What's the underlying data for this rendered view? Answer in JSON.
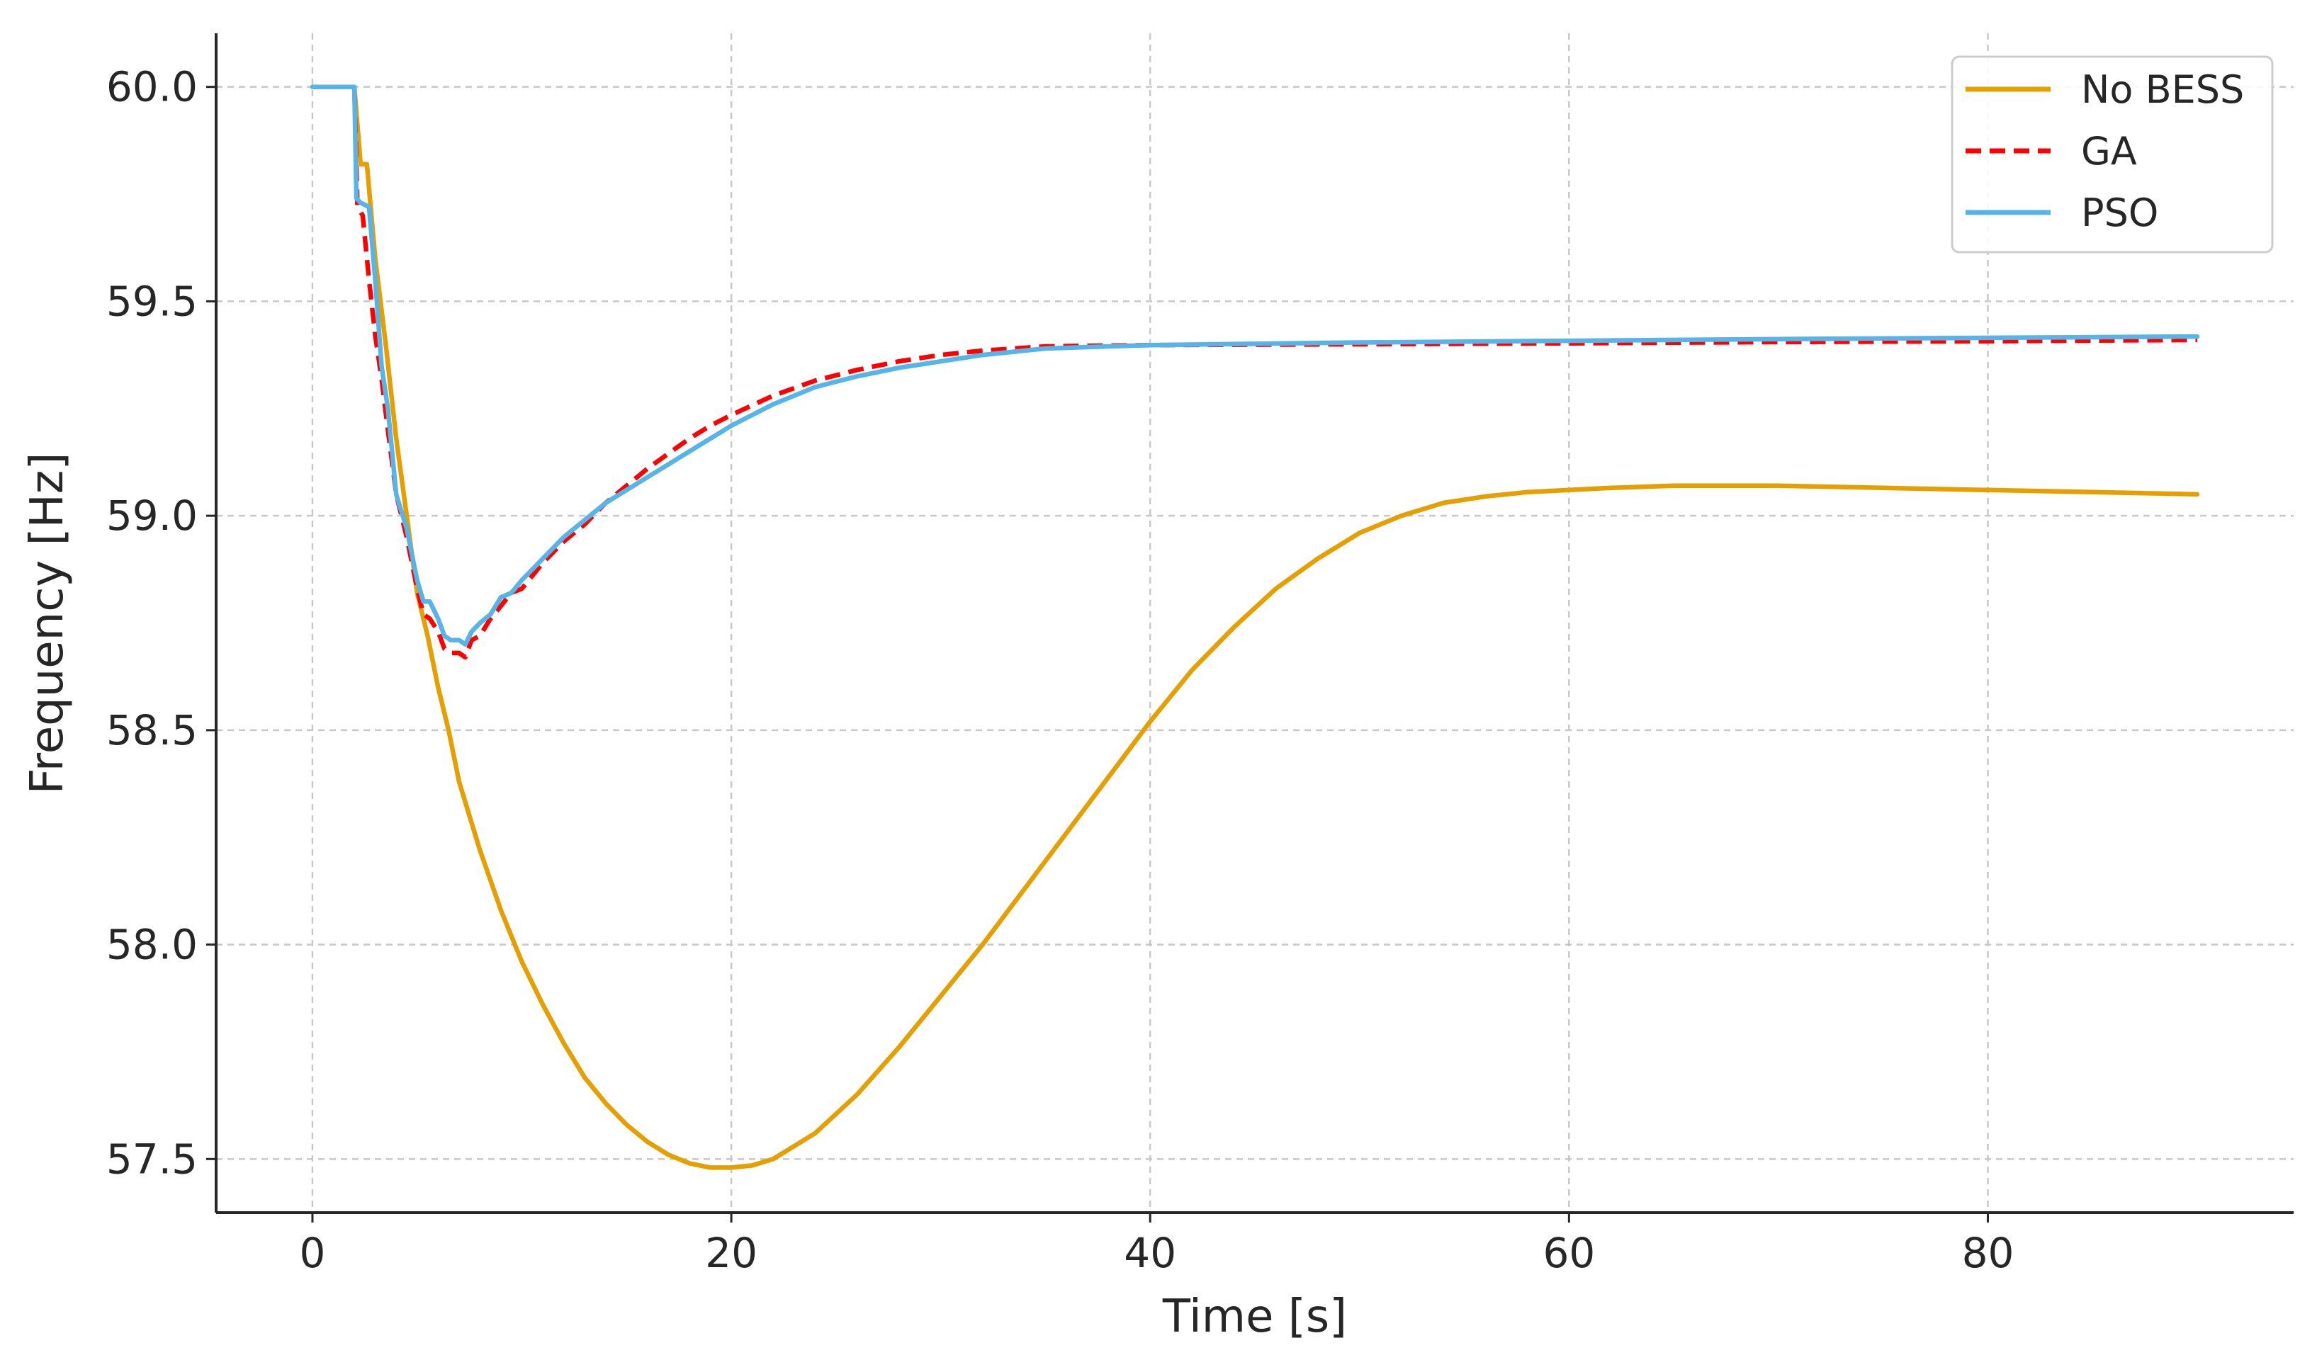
{
  "chart_data": {
    "type": "line",
    "xlabel": "Time [s]",
    "ylabel": "Frequency [Hz]",
    "xlim": [
      -4.6,
      94.6
    ],
    "ylim": [
      57.375,
      60.125
    ],
    "xticks": [
      0,
      20,
      40,
      60,
      80
    ],
    "xtick_labels": [
      "0",
      "20",
      "40",
      "60",
      "80"
    ],
    "yticks": [
      57.5,
      58.0,
      58.5,
      59.0,
      59.5,
      60.0
    ],
    "ytick_labels": [
      "57.5",
      "58.0",
      "58.5",
      "59.0",
      "59.5",
      "60.0"
    ],
    "grid": true,
    "legend_position": "top-right",
    "series": [
      {
        "name": "No BESS",
        "color": "#E69F00",
        "style": "solid",
        "x": [
          0,
          2.0,
          2.3,
          2.6,
          3.0,
          3.5,
          4.0,
          4.5,
          5.0,
          5.5,
          6.0,
          6.5,
          7.0,
          7.5,
          8.0,
          8.5,
          9.0,
          9.5,
          10.0,
          11.0,
          12.0,
          13.0,
          14.0,
          15.0,
          16.0,
          17.0,
          18.0,
          19.0,
          20.0,
          21.0,
          22.0,
          24.0,
          26.0,
          28.0,
          30.0,
          32.0,
          34.0,
          36.0,
          38.0,
          40.0,
          42.0,
          44.0,
          46.0,
          48.0,
          50.0,
          52.0,
          54.0,
          56.0,
          58.0,
          60.0,
          62.0,
          65.0,
          70.0,
          75.0,
          80.0,
          85.0,
          90.0
        ],
        "y": [
          60.0,
          60.0,
          59.82,
          59.82,
          59.6,
          59.4,
          59.18,
          59.0,
          58.82,
          58.72,
          58.6,
          58.5,
          58.38,
          58.3,
          58.22,
          58.15,
          58.08,
          58.02,
          57.96,
          57.86,
          57.77,
          57.69,
          57.63,
          57.58,
          57.54,
          57.51,
          57.49,
          57.48,
          57.48,
          57.485,
          57.5,
          57.56,
          57.65,
          57.76,
          57.88,
          58.0,
          58.13,
          58.26,
          58.39,
          58.52,
          58.64,
          58.74,
          58.83,
          58.9,
          58.96,
          59.0,
          59.03,
          59.045,
          59.055,
          59.06,
          59.065,
          59.07,
          59.07,
          59.065,
          59.06,
          59.055,
          59.05
        ]
      },
      {
        "name": "GA",
        "color": "#FF0000",
        "style": "dashed",
        "x": [
          0,
          2.0,
          2.15,
          2.4,
          2.7,
          3.0,
          3.3,
          3.6,
          4.0,
          4.5,
          5.0,
          5.3,
          5.6,
          6.0,
          6.3,
          6.6,
          7.0,
          7.3,
          7.6,
          8.0,
          8.5,
          9.0,
          9.5,
          10.0,
          11.0,
          12.0,
          13.0,
          14.0,
          15.0,
          16.0,
          17.0,
          18.0,
          19.0,
          20.0,
          22.0,
          24.0,
          26.0,
          28.0,
          30.0,
          32.0,
          35.0,
          40.0,
          50.0,
          60.0,
          70.0,
          80.0,
          90.0
        ],
        "y": [
          60.0,
          60.0,
          59.72,
          59.7,
          59.55,
          59.42,
          59.32,
          59.2,
          59.05,
          58.95,
          58.83,
          58.77,
          58.76,
          58.73,
          58.69,
          58.68,
          58.68,
          58.67,
          58.71,
          58.72,
          58.76,
          58.79,
          58.82,
          58.83,
          58.89,
          58.94,
          58.98,
          59.03,
          59.07,
          59.11,
          59.145,
          59.18,
          59.21,
          59.235,
          59.28,
          59.315,
          59.34,
          59.36,
          59.375,
          59.385,
          59.395,
          59.398,
          59.4,
          59.402,
          59.405,
          59.407,
          59.41
        ]
      },
      {
        "name": "PSO",
        "color": "#56B4E9",
        "style": "solid",
        "x": [
          0,
          2.0,
          2.1,
          2.3,
          2.7,
          3.0,
          3.3,
          3.6,
          4.0,
          4.5,
          5.0,
          5.3,
          5.6,
          6.0,
          6.3,
          6.6,
          7.0,
          7.3,
          7.6,
          8.0,
          8.5,
          9.0,
          9.5,
          10.0,
          11.0,
          12.0,
          13.0,
          14.0,
          15.0,
          16.0,
          17.0,
          18.0,
          19.0,
          20.0,
          22.0,
          24.0,
          26.0,
          28.0,
          30.0,
          32.0,
          35.0,
          40.0,
          50.0,
          60.0,
          70.0,
          80.0,
          90.0
        ],
        "y": [
          60.0,
          60.0,
          59.74,
          59.73,
          59.72,
          59.55,
          59.35,
          59.25,
          59.05,
          58.97,
          58.85,
          58.8,
          58.8,
          58.76,
          58.72,
          58.71,
          58.71,
          58.7,
          58.73,
          58.75,
          58.77,
          58.81,
          58.82,
          58.85,
          58.9,
          58.95,
          58.99,
          59.03,
          59.06,
          59.09,
          59.12,
          59.15,
          59.18,
          59.21,
          59.26,
          59.3,
          59.325,
          59.345,
          59.36,
          59.375,
          59.39,
          59.398,
          59.404,
          59.408,
          59.412,
          59.415,
          59.418
        ]
      }
    ]
  }
}
